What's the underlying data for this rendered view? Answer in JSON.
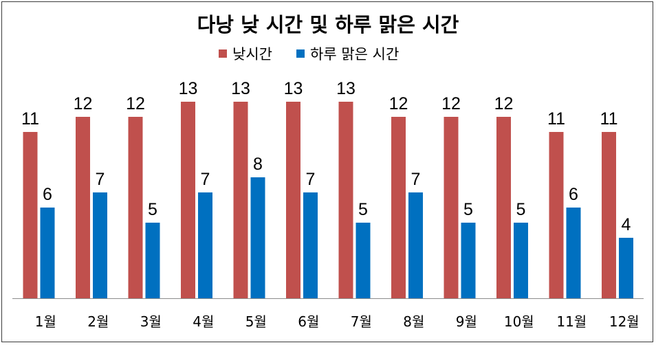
{
  "chart_data": {
    "type": "bar",
    "title": "다낭 낮 시간 및 하루 맑은 시간",
    "categories": [
      "1월",
      "2월",
      "3월",
      "4월",
      "5월",
      "6월",
      "7월",
      "8월",
      "9월",
      "10월",
      "11월",
      "12월"
    ],
    "series": [
      {
        "name": "낮시간",
        "color": "#C0504D",
        "values": [
          11,
          12,
          12,
          13,
          13,
          13,
          13,
          12,
          12,
          12,
          11,
          11
        ]
      },
      {
        "name": "하루 맑은 시간",
        "color": "#0070C0",
        "values": [
          6,
          7,
          5,
          7,
          8,
          7,
          5,
          7,
          5,
          5,
          6,
          4
        ]
      }
    ],
    "ylim": [
      0,
      14
    ],
    "legend": "top-center",
    "grid": false,
    "data_labels": true
  }
}
